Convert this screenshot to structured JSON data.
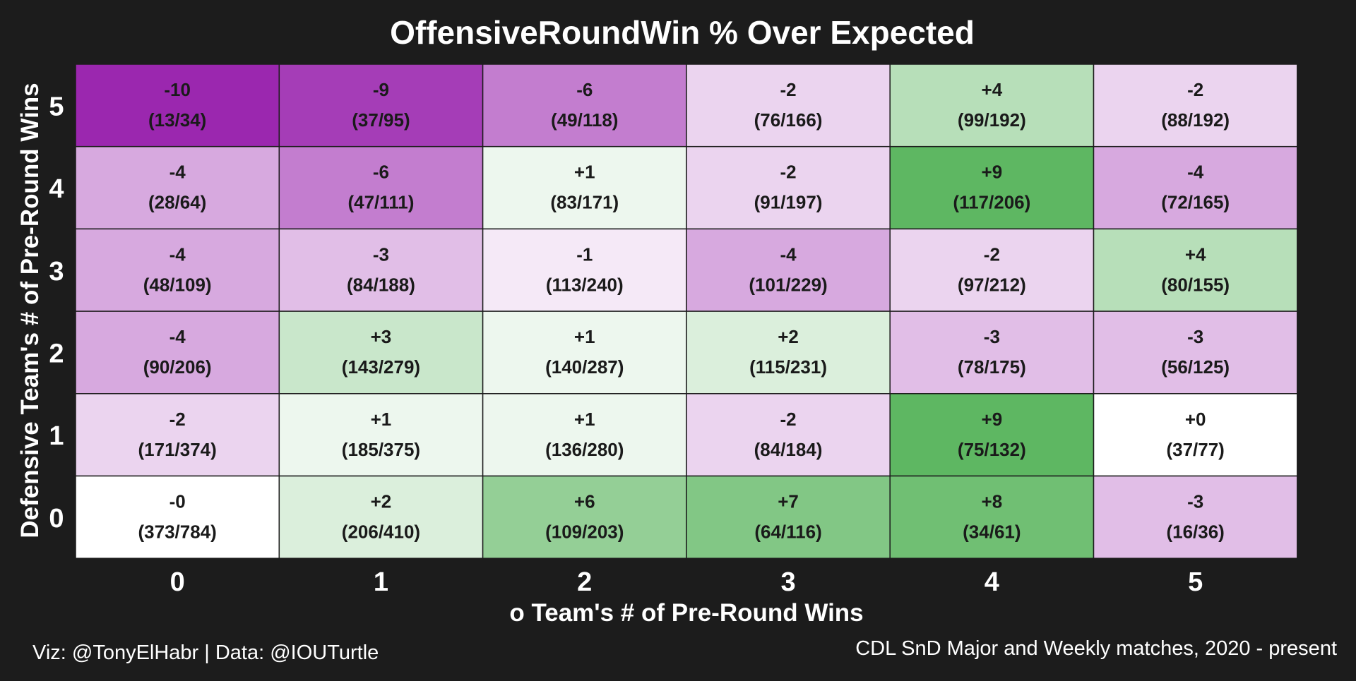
{
  "chart_data": {
    "type": "heatmap",
    "title": "OffensiveRoundWin % Over Expected",
    "xlabel": "o Team's # of Pre-Round Wins",
    "ylabel": "Defensive Team's # of Pre-Round Wins",
    "x_categories": [
      "0",
      "1",
      "2",
      "3",
      "4",
      "5"
    ],
    "y_categories": [
      "5",
      "4",
      "3",
      "2",
      "1",
      "0"
    ],
    "value_scale": {
      "negative_color": "#9b27af",
      "neutral_color": "#ffffff",
      "positive_color": "#4caf50"
    },
    "grid": true,
    "legend": "none",
    "rows": [
      {
        "y": "5",
        "cells": [
          {
            "x": "0",
            "value": -10,
            "label": "-10",
            "record": "(13/34)"
          },
          {
            "x": "1",
            "value": -9,
            "label": "-9",
            "record": "(37/95)"
          },
          {
            "x": "2",
            "value": -6,
            "label": "-6",
            "record": "(49/118)"
          },
          {
            "x": "3",
            "value": -2,
            "label": "-2",
            "record": "(76/166)"
          },
          {
            "x": "4",
            "value": 4,
            "label": "+4",
            "record": "(99/192)"
          },
          {
            "x": "5",
            "value": -2,
            "label": "-2",
            "record": "(88/192)"
          }
        ]
      },
      {
        "y": "4",
        "cells": [
          {
            "x": "0",
            "value": -4,
            "label": "-4",
            "record": "(28/64)"
          },
          {
            "x": "1",
            "value": -6,
            "label": "-6",
            "record": "(47/111)"
          },
          {
            "x": "2",
            "value": 1,
            "label": "+1",
            "record": "(83/171)"
          },
          {
            "x": "3",
            "value": -2,
            "label": "-2",
            "record": "(91/197)"
          },
          {
            "x": "4",
            "value": 9,
            "label": "+9",
            "record": "(117/206)"
          },
          {
            "x": "5",
            "value": -4,
            "label": "-4",
            "record": "(72/165)"
          }
        ]
      },
      {
        "y": "3",
        "cells": [
          {
            "x": "0",
            "value": -4,
            "label": "-4",
            "record": "(48/109)"
          },
          {
            "x": "1",
            "value": -3,
            "label": "-3",
            "record": "(84/188)"
          },
          {
            "x": "2",
            "value": -1,
            "label": "-1",
            "record": "(113/240)"
          },
          {
            "x": "3",
            "value": -4,
            "label": "-4",
            "record": "(101/229)"
          },
          {
            "x": "4",
            "value": -2,
            "label": "-2",
            "record": "(97/212)"
          },
          {
            "x": "5",
            "value": 4,
            "label": "+4",
            "record": "(80/155)"
          }
        ]
      },
      {
        "y": "2",
        "cells": [
          {
            "x": "0",
            "value": -4,
            "label": "-4",
            "record": "(90/206)"
          },
          {
            "x": "1",
            "value": 3,
            "label": "+3",
            "record": "(143/279)"
          },
          {
            "x": "2",
            "value": 1,
            "label": "+1",
            "record": "(140/287)"
          },
          {
            "x": "3",
            "value": 2,
            "label": "+2",
            "record": "(115/231)"
          },
          {
            "x": "4",
            "value": -3,
            "label": "-3",
            "record": "(78/175)"
          },
          {
            "x": "5",
            "value": -3,
            "label": "-3",
            "record": "(56/125)"
          }
        ]
      },
      {
        "y": "1",
        "cells": [
          {
            "x": "0",
            "value": -2,
            "label": "-2",
            "record": "(171/374)"
          },
          {
            "x": "1",
            "value": 1,
            "label": "+1",
            "record": "(185/375)"
          },
          {
            "x": "2",
            "value": 1,
            "label": "+1",
            "record": "(136/280)"
          },
          {
            "x": "3",
            "value": -2,
            "label": "-2",
            "record": "(84/184)"
          },
          {
            "x": "4",
            "value": 9,
            "label": "+9",
            "record": "(75/132)"
          },
          {
            "x": "5",
            "value": 0,
            "label": "+0",
            "record": "(37/77)"
          }
        ]
      },
      {
        "y": "0",
        "cells": [
          {
            "x": "0",
            "value": 0,
            "label": "-0",
            "record": "(373/784)"
          },
          {
            "x": "1",
            "value": 2,
            "label": "+2",
            "record": "(206/410)"
          },
          {
            "x": "2",
            "value": 6,
            "label": "+6",
            "record": "(109/203)"
          },
          {
            "x": "3",
            "value": 7,
            "label": "+7",
            "record": "(64/116)"
          },
          {
            "x": "4",
            "value": 8,
            "label": "+8",
            "record": "(34/61)"
          },
          {
            "x": "5",
            "value": -3,
            "label": "-3",
            "record": "(16/36)"
          }
        ]
      }
    ]
  },
  "footer": {
    "credit": "Viz: @TonyElHabr | Data: @IOUTurtle",
    "source": "CDL SnD Major and Weekly matches, 2020 - present"
  },
  "colors": {
    "background": "#1c1c1c",
    "text_light": "#ffffff",
    "cell_text": "#1a1a1a",
    "cell_border": "#1c1c1c"
  }
}
